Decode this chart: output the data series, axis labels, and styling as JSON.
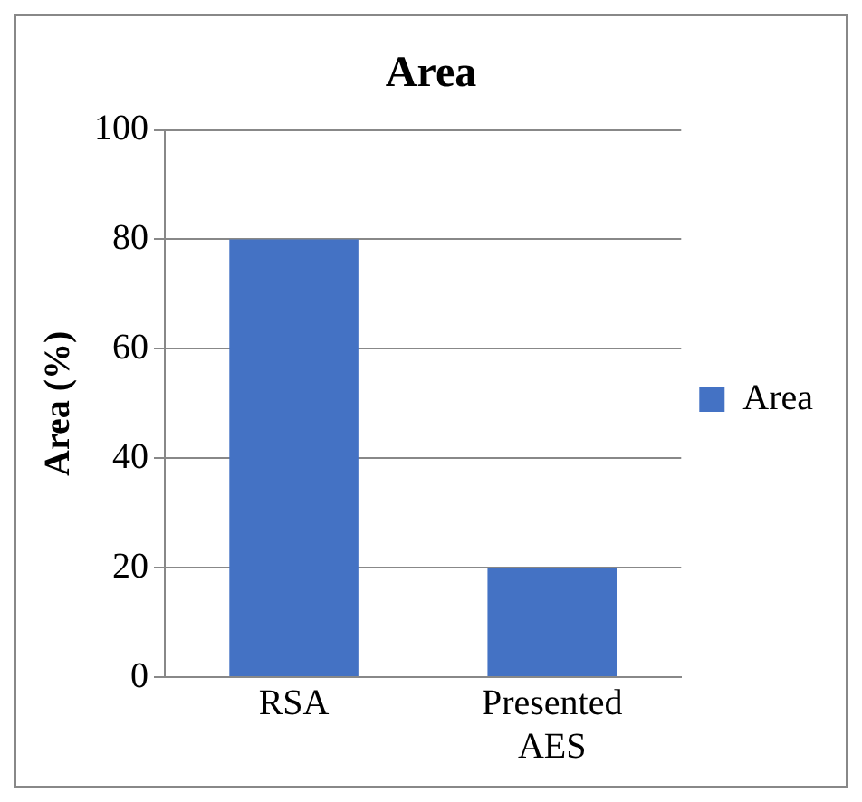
{
  "chart_data": {
    "type": "bar",
    "title": "Area",
    "ylabel": "Area (%)",
    "categories": [
      "RSA",
      "Presented AES"
    ],
    "series": [
      {
        "name": "Area",
        "color": "#4472c4",
        "values": [
          80,
          20
        ]
      }
    ],
    "ylim": [
      0,
      100
    ],
    "yticks": [
      0,
      20,
      40,
      60,
      80,
      100
    ],
    "grid": "y",
    "legend": "right"
  }
}
